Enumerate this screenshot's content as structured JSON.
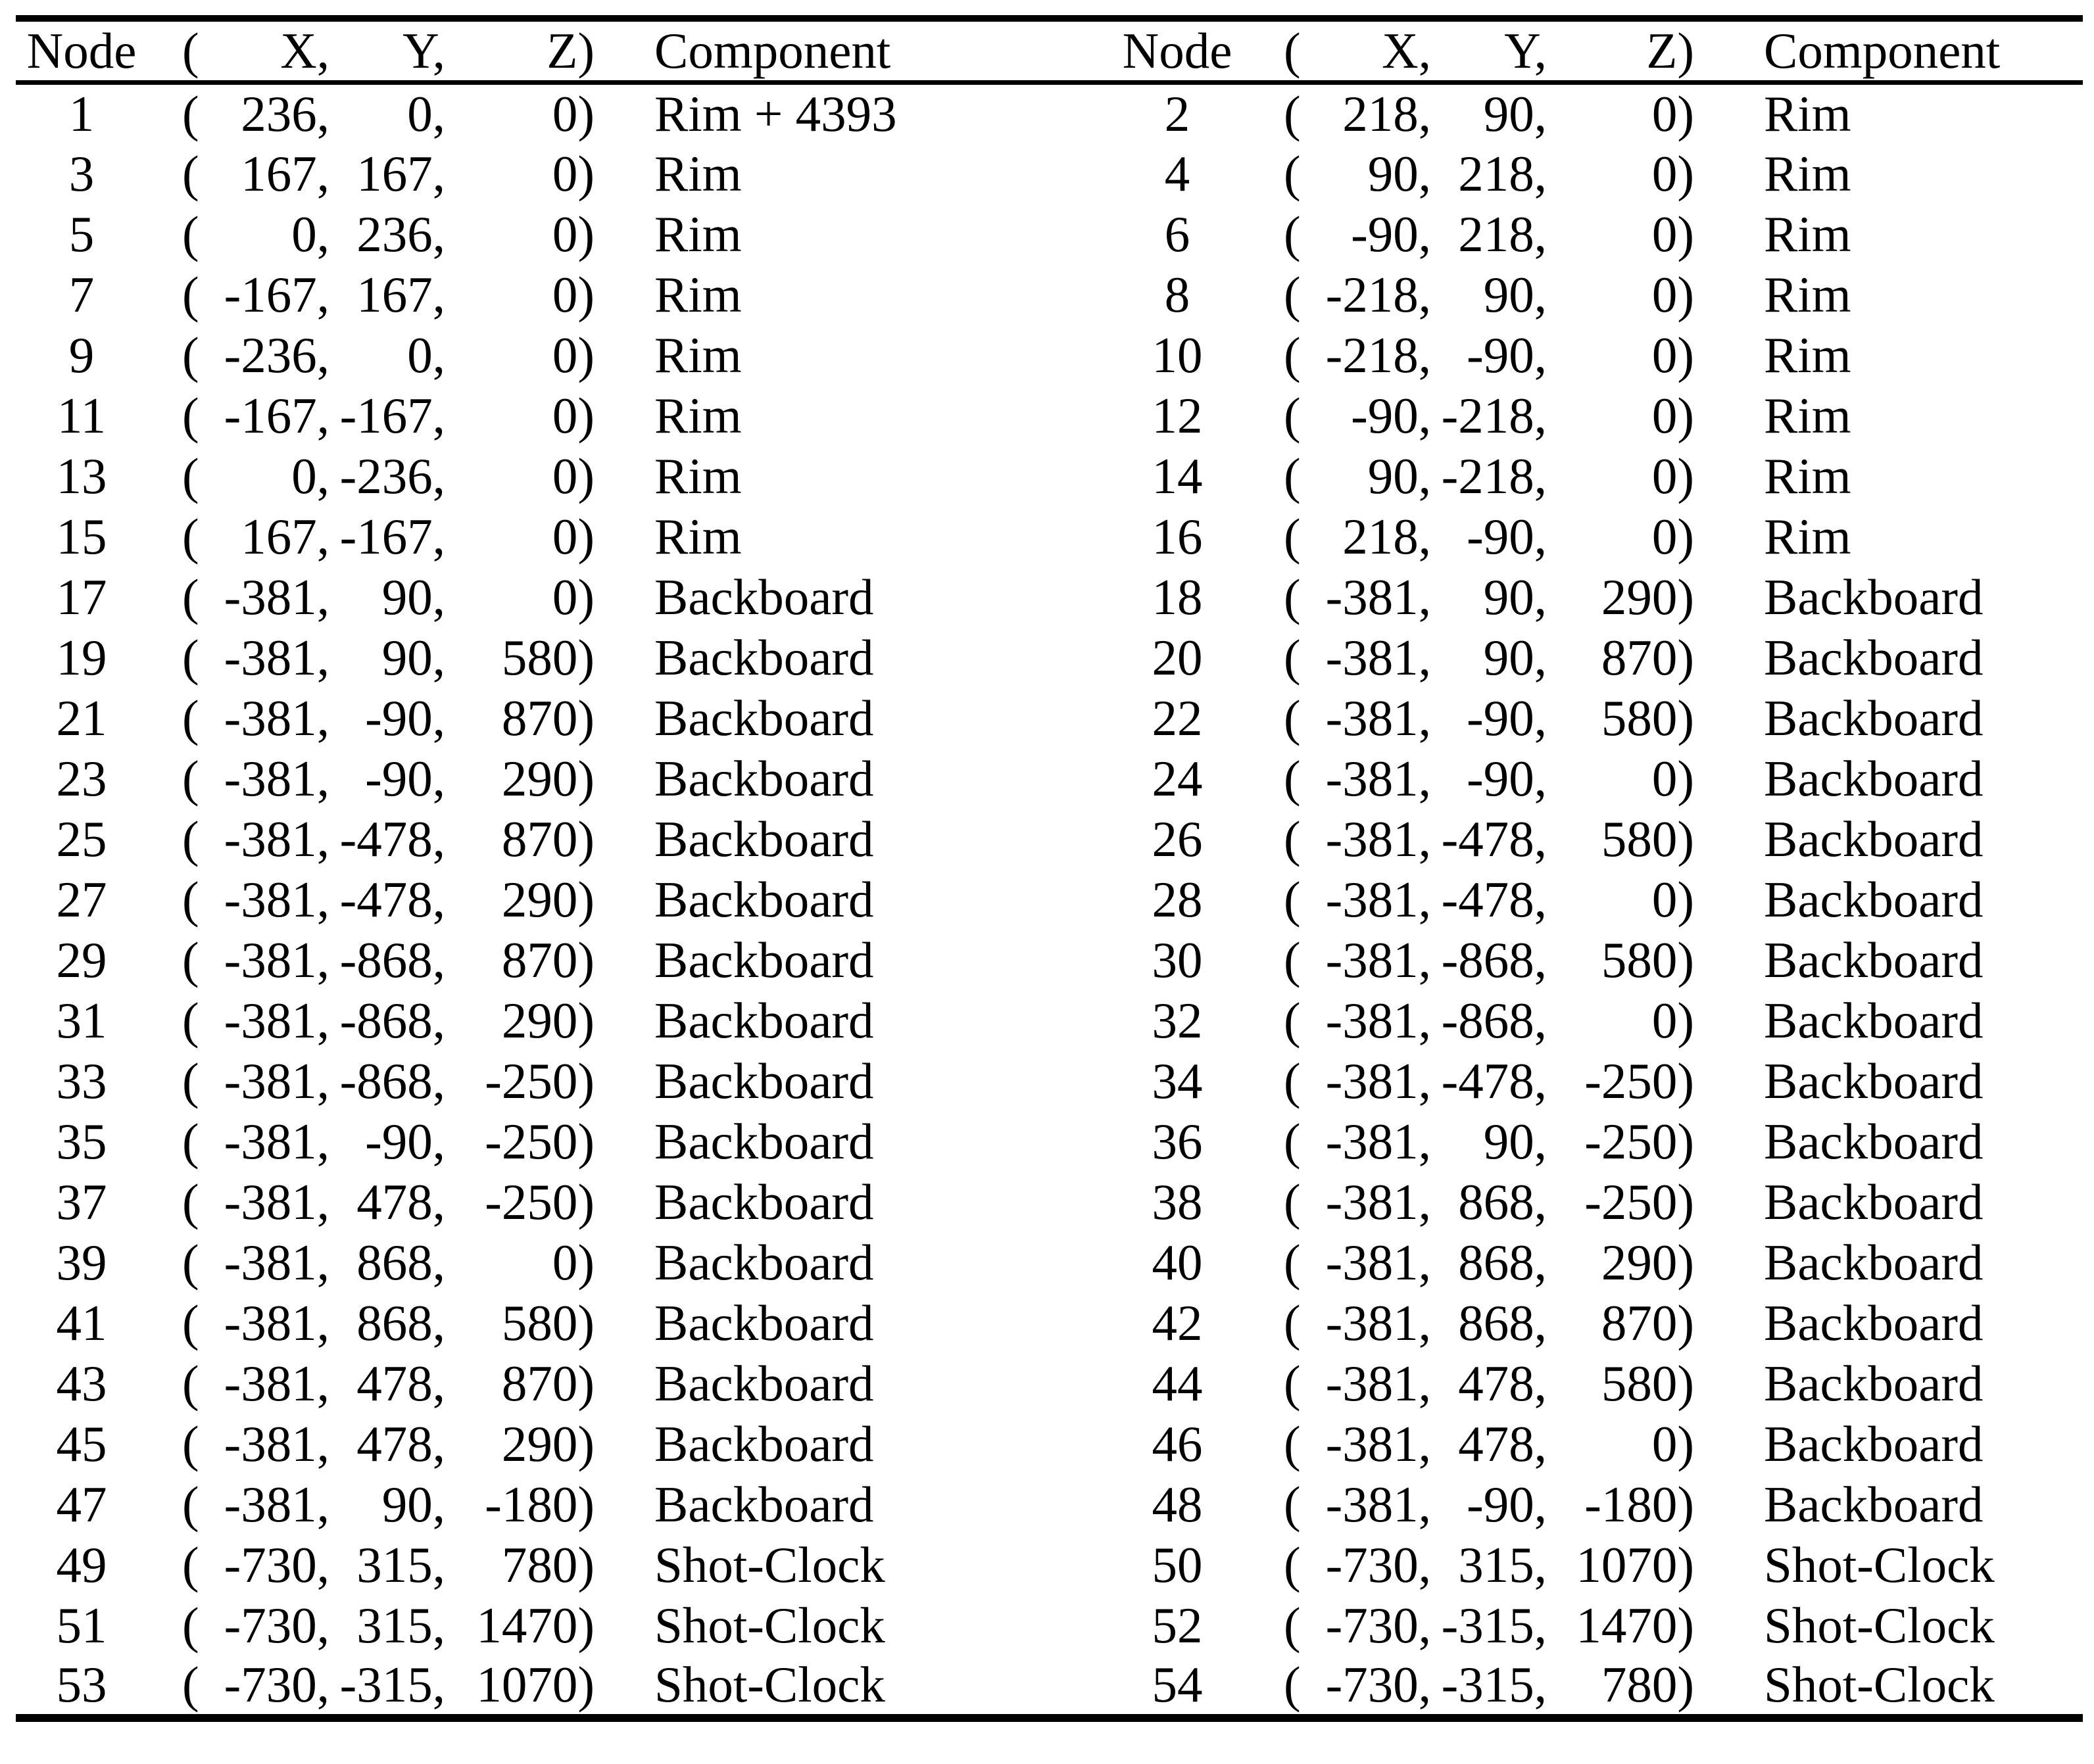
{
  "page": {
    "background": "#ffffff",
    "text_color": "#000000"
  },
  "table": {
    "headers": {
      "node": "Node",
      "open_paren": "(",
      "x": "X,",
      "y": "Y,",
      "z": "Z)",
      "component": "Component"
    },
    "rows": [
      {
        "left": {
          "node": "1",
          "xyz": [
            236,
            0,
            0
          ],
          "component": "Rim + 4393"
        },
        "right": {
          "node": "2",
          "xyz": [
            218,
            90,
            0
          ],
          "component": "Rim"
        }
      },
      {
        "left": {
          "node": "3",
          "xyz": [
            167,
            167,
            0
          ],
          "component": "Rim"
        },
        "right": {
          "node": "4",
          "xyz": [
            90,
            218,
            0
          ],
          "component": "Rim"
        }
      },
      {
        "left": {
          "node": "5",
          "xyz": [
            0,
            236,
            0
          ],
          "component": "Rim"
        },
        "right": {
          "node": "6",
          "xyz": [
            -90,
            218,
            0
          ],
          "component": "Rim"
        }
      },
      {
        "left": {
          "node": "7",
          "xyz": [
            -167,
            167,
            0
          ],
          "component": "Rim"
        },
        "right": {
          "node": "8",
          "xyz": [
            -218,
            90,
            0
          ],
          "component": "Rim"
        }
      },
      {
        "left": {
          "node": "9",
          "xyz": [
            -236,
            0,
            0
          ],
          "component": "Rim"
        },
        "right": {
          "node": "10",
          "xyz": [
            -218,
            -90,
            0
          ],
          "component": "Rim"
        }
      },
      {
        "left": {
          "node": "11",
          "xyz": [
            -167,
            -167,
            0
          ],
          "component": "Rim"
        },
        "right": {
          "node": "12",
          "xyz": [
            -90,
            -218,
            0
          ],
          "component": "Rim"
        }
      },
      {
        "left": {
          "node": "13",
          "xyz": [
            0,
            -236,
            0
          ],
          "component": "Rim"
        },
        "right": {
          "node": "14",
          "xyz": [
            90,
            -218,
            0
          ],
          "component": "Rim"
        }
      },
      {
        "left": {
          "node": "15",
          "xyz": [
            167,
            -167,
            0
          ],
          "component": "Rim"
        },
        "right": {
          "node": "16",
          "xyz": [
            218,
            -90,
            0
          ],
          "component": "Rim"
        }
      },
      {
        "left": {
          "node": "17",
          "xyz": [
            -381,
            90,
            0
          ],
          "component": "Backboard"
        },
        "right": {
          "node": "18",
          "xyz": [
            -381,
            90,
            290
          ],
          "component": "Backboard"
        }
      },
      {
        "left": {
          "node": "19",
          "xyz": [
            -381,
            90,
            580
          ],
          "component": "Backboard"
        },
        "right": {
          "node": "20",
          "xyz": [
            -381,
            90,
            870
          ],
          "component": "Backboard"
        }
      },
      {
        "left": {
          "node": "21",
          "xyz": [
            -381,
            -90,
            870
          ],
          "component": "Backboard"
        },
        "right": {
          "node": "22",
          "xyz": [
            -381,
            -90,
            580
          ],
          "component": "Backboard"
        }
      },
      {
        "left": {
          "node": "23",
          "xyz": [
            -381,
            -90,
            290
          ],
          "component": "Backboard"
        },
        "right": {
          "node": "24",
          "xyz": [
            -381,
            -90,
            0
          ],
          "component": "Backboard"
        }
      },
      {
        "left": {
          "node": "25",
          "xyz": [
            -381,
            -478,
            870
          ],
          "component": "Backboard"
        },
        "right": {
          "node": "26",
          "xyz": [
            -381,
            -478,
            580
          ],
          "component": "Backboard"
        }
      },
      {
        "left": {
          "node": "27",
          "xyz": [
            -381,
            -478,
            290
          ],
          "component": "Backboard"
        },
        "right": {
          "node": "28",
          "xyz": [
            -381,
            -478,
            0
          ],
          "component": "Backboard"
        }
      },
      {
        "left": {
          "node": "29",
          "xyz": [
            -381,
            -868,
            870
          ],
          "component": "Backboard"
        },
        "right": {
          "node": "30",
          "xyz": [
            -381,
            -868,
            580
          ],
          "component": "Backboard"
        }
      },
      {
        "left": {
          "node": "31",
          "xyz": [
            -381,
            -868,
            290
          ],
          "component": "Backboard"
        },
        "right": {
          "node": "32",
          "xyz": [
            -381,
            -868,
            0
          ],
          "component": "Backboard"
        }
      },
      {
        "left": {
          "node": "33",
          "xyz": [
            -381,
            -868,
            -250
          ],
          "component": "Backboard"
        },
        "right": {
          "node": "34",
          "xyz": [
            -381,
            -478,
            -250
          ],
          "component": "Backboard"
        }
      },
      {
        "left": {
          "node": "35",
          "xyz": [
            -381,
            -90,
            -250
          ],
          "component": "Backboard"
        },
        "right": {
          "node": "36",
          "xyz": [
            -381,
            90,
            -250
          ],
          "component": "Backboard"
        }
      },
      {
        "left": {
          "node": "37",
          "xyz": [
            -381,
            478,
            -250
          ],
          "component": "Backboard"
        },
        "right": {
          "node": "38",
          "xyz": [
            -381,
            868,
            -250
          ],
          "component": "Backboard"
        }
      },
      {
        "left": {
          "node": "39",
          "xyz": [
            -381,
            868,
            0
          ],
          "component": "Backboard"
        },
        "right": {
          "node": "40",
          "xyz": [
            -381,
            868,
            290
          ],
          "component": "Backboard"
        }
      },
      {
        "left": {
          "node": "41",
          "xyz": [
            -381,
            868,
            580
          ],
          "component": "Backboard"
        },
        "right": {
          "node": "42",
          "xyz": [
            -381,
            868,
            870
          ],
          "component": "Backboard"
        }
      },
      {
        "left": {
          "node": "43",
          "xyz": [
            -381,
            478,
            870
          ],
          "component": "Backboard"
        },
        "right": {
          "node": "44",
          "xyz": [
            -381,
            478,
            580
          ],
          "component": "Backboard"
        }
      },
      {
        "left": {
          "node": "45",
          "xyz": [
            -381,
            478,
            290
          ],
          "component": "Backboard"
        },
        "right": {
          "node": "46",
          "xyz": [
            -381,
            478,
            0
          ],
          "component": "Backboard"
        }
      },
      {
        "left": {
          "node": "47",
          "xyz": [
            -381,
            90,
            -180
          ],
          "component": "Backboard"
        },
        "right": {
          "node": "48",
          "xyz": [
            -381,
            -90,
            -180
          ],
          "component": "Backboard"
        }
      },
      {
        "left": {
          "node": "49",
          "xyz": [
            -730,
            315,
            780
          ],
          "component": "Shot-Clock"
        },
        "right": {
          "node": "50",
          "xyz": [
            -730,
            315,
            1070
          ],
          "component": "Shot-Clock"
        }
      },
      {
        "left": {
          "node": "51",
          "xyz": [
            -730,
            315,
            1470
          ],
          "component": "Shot-Clock"
        },
        "right": {
          "node": "52",
          "xyz": [
            -730,
            -315,
            1470
          ],
          "component": "Shot-Clock"
        }
      },
      {
        "left": {
          "node": "53",
          "xyz": [
            -730,
            -315,
            1070
          ],
          "component": "Shot-Clock"
        },
        "right": {
          "node": "54",
          "xyz": [
            -730,
            -315,
            780
          ],
          "component": "Shot-Clock"
        }
      }
    ]
  }
}
